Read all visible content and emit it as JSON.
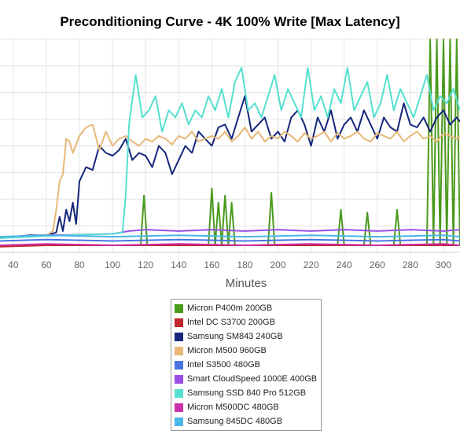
{
  "chart_data": {
    "type": "line",
    "title": "Preconditioning Curve - 4K 100% Write [Max Latency]",
    "xlabel": "Minutes",
    "ylabel": "",
    "xlim": [
      32,
      310
    ],
    "ylim": [
      0,
      150
    ],
    "x_ticks": [
      40,
      60,
      80,
      100,
      120,
      140,
      160,
      180,
      200,
      220,
      240,
      260,
      280,
      300
    ],
    "grid": true,
    "legend_position": "bottom",
    "series": [
      {
        "name": "Micron P400m 200GB",
        "color": "#4a9a1c",
        "x": [
          32,
          110,
          117,
          119,
          121,
          130,
          158,
          160,
          162,
          164,
          166,
          168,
          170,
          172,
          174,
          194,
          196,
          198,
          236,
          238,
          240,
          252,
          254,
          256,
          270,
          272,
          274,
          290,
          292,
          294,
          296,
          298,
          300,
          302,
          304,
          306,
          308,
          310
        ],
        "y": [
          5,
          5,
          5,
          40,
          5,
          5,
          5,
          45,
          5,
          35,
          5,
          40,
          5,
          35,
          5,
          5,
          42,
          5,
          5,
          30,
          5,
          5,
          28,
          5,
          5,
          30,
          5,
          5,
          150,
          5,
          150,
          5,
          150,
          5,
          150,
          5,
          150,
          5
        ]
      },
      {
        "name": "Intel DC S3700 200GB",
        "color": "#c0262c",
        "x": [
          32,
          60,
          100,
          140,
          180,
          220,
          260,
          300,
          310
        ],
        "y": [
          4,
          5,
          5,
          5,
          5,
          5,
          5,
          5,
          5
        ]
      },
      {
        "name": "Samsung SM843 240GB",
        "color": "#15267a",
        "x": [
          32,
          50,
          60,
          66,
          68,
          70,
          72,
          74,
          76,
          78,
          80,
          84,
          88,
          92,
          96,
          100,
          104,
          108,
          112,
          116,
          120,
          124,
          128,
          132,
          136,
          140,
          144,
          148,
          152,
          156,
          160,
          164,
          168,
          172,
          176,
          180,
          184,
          188,
          192,
          196,
          200,
          204,
          208,
          212,
          216,
          220,
          224,
          228,
          232,
          236,
          240,
          244,
          248,
          252,
          256,
          260,
          264,
          268,
          272,
          276,
          280,
          284,
          288,
          292,
          296,
          300,
          304,
          308,
          310
        ],
        "y": [
          10,
          12,
          12,
          14,
          25,
          15,
          30,
          22,
          35,
          20,
          50,
          60,
          58,
          75,
          70,
          68,
          72,
          80,
          65,
          70,
          68,
          60,
          75,
          70,
          55,
          65,
          75,
          70,
          85,
          80,
          75,
          88,
          90,
          80,
          95,
          110,
          85,
          90,
          95,
          80,
          85,
          78,
          95,
          100,
          90,
          75,
          95,
          85,
          100,
          80,
          90,
          95,
          85,
          100,
          90,
          80,
          95,
          88,
          85,
          105,
          90,
          88,
          95,
          85,
          95,
          100,
          90,
          95,
          92
        ]
      },
      {
        "name": "Micron M500 960GB",
        "color": "#e8b778",
        "x": [
          32,
          60,
          64,
          66,
          68,
          70,
          72,
          74,
          76,
          80,
          84,
          88,
          92,
          96,
          100,
          104,
          108,
          112,
          116,
          120,
          124,
          128,
          132,
          136,
          140,
          144,
          148,
          152,
          156,
          160,
          164,
          168,
          172,
          176,
          180,
          184,
          188,
          192,
          196,
          200,
          204,
          208,
          212,
          216,
          220,
          224,
          228,
          232,
          236,
          240,
          244,
          248,
          252,
          256,
          260,
          264,
          268,
          272,
          276,
          280,
          284,
          288,
          292,
          296,
          300,
          304,
          308,
          310
        ],
        "y": [
          10,
          12,
          15,
          30,
          50,
          55,
          80,
          78,
          70,
          82,
          88,
          90,
          72,
          85,
          75,
          80,
          82,
          78,
          75,
          80,
          78,
          82,
          80,
          76,
          82,
          80,
          85,
          78,
          80,
          82,
          80,
          85,
          78,
          82,
          88,
          80,
          85,
          78,
          82,
          80,
          85,
          82,
          78,
          84,
          80,
          82,
          85,
          78,
          84,
          80,
          82,
          85,
          80,
          78,
          84,
          82,
          80,
          85,
          78,
          82,
          85,
          80,
          82,
          78,
          84,
          82,
          80,
          82
        ]
      },
      {
        "name": "Intel S3500 480GB",
        "color": "#4a74e0",
        "x": [
          32,
          60,
          100,
          140,
          180,
          220,
          260,
          300,
          310
        ],
        "y": [
          8,
          9,
          8,
          9,
          8,
          9,
          8,
          9,
          8
        ]
      },
      {
        "name": "Smart CloudSpeed 1000E 400GB",
        "color": "#9a4ee6",
        "x": [
          32,
          60,
          100,
          110,
          120,
          140,
          160,
          180,
          200,
          220,
          240,
          260,
          280,
          300,
          310
        ],
        "y": [
          10,
          12,
          13,
          15,
          16,
          15,
          16,
          15,
          16,
          15,
          16,
          15,
          16,
          15,
          16
        ]
      },
      {
        "name": "Samsung SSD 840 Pro 512GB",
        "color": "#55e0d0",
        "x": [
          32,
          70,
          100,
          106,
          108,
          110,
          114,
          118,
          122,
          126,
          130,
          134,
          138,
          142,
          146,
          150,
          154,
          158,
          162,
          166,
          170,
          174,
          178,
          182,
          186,
          190,
          194,
          198,
          202,
          206,
          210,
          214,
          218,
          222,
          226,
          230,
          234,
          238,
          242,
          246,
          250,
          254,
          258,
          262,
          266,
          270,
          274,
          278,
          282,
          286,
          290,
          294,
          298,
          302,
          306,
          310
        ],
        "y": [
          10,
          12,
          13,
          14,
          40,
          90,
          125,
          95,
          100,
          110,
          85,
          100,
          95,
          105,
          90,
          100,
          95,
          110,
          100,
          115,
          95,
          120,
          130,
          100,
          105,
          95,
          110,
          125,
          100,
          115,
          105,
          95,
          130,
          100,
          110,
          95,
          115,
          105,
          130,
          100,
          110,
          120,
          95,
          105,
          125,
          100,
          115,
          105,
          95,
          110,
          125,
          100,
          110,
          105,
          115,
          100
        ]
      },
      {
        "name": "Micron M500DC 480GB",
        "color": "#cc30a8",
        "x": [
          32,
          60,
          100,
          140,
          180,
          220,
          260,
          300,
          310
        ],
        "y": [
          5,
          6,
          5,
          6,
          5,
          6,
          5,
          6,
          5
        ]
      },
      {
        "name": "Samsung 845DC 480GB",
        "color": "#4ab5e8",
        "x": [
          32,
          60,
          100,
          140,
          180,
          220,
          260,
          300,
          310
        ],
        "y": [
          11,
          12,
          11,
          12,
          11,
          12,
          11,
          12,
          11
        ]
      }
    ]
  }
}
